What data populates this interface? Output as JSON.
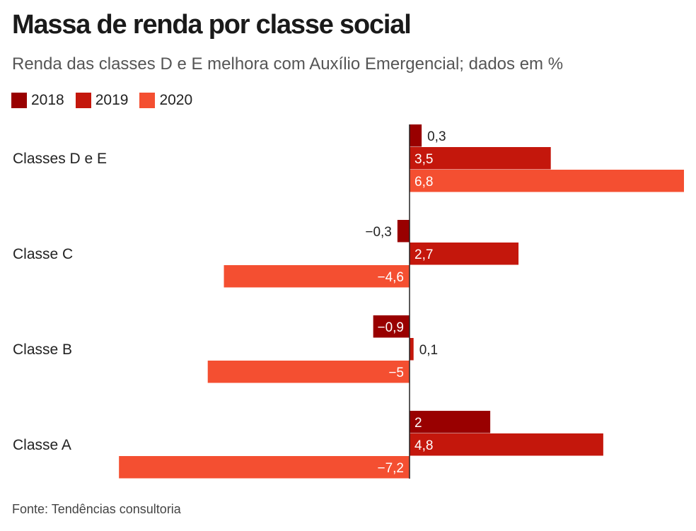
{
  "chart_data": {
    "type": "bar",
    "orientation": "horizontal",
    "title": "Massa de renda por classe social",
    "subtitle": "Renda das classes D e E melhora com Auxílio Emergencial; dados em %",
    "categories": [
      "Classes D e E",
      "Classe C",
      "Classe B",
      "Classe A"
    ],
    "series": [
      {
        "name": "2018",
        "color": "#990000",
        "values": [
          0.3,
          -0.3,
          -0.9,
          2
        ],
        "labels": [
          "0,3",
          "−0,3",
          "−0,9",
          "2"
        ]
      },
      {
        "name": "2019",
        "color": "#c4170c",
        "values": [
          3.5,
          2.7,
          0.1,
          4.8
        ],
        "labels": [
          "3,5",
          "2,7",
          "0,1",
          "4,8"
        ]
      },
      {
        "name": "2020",
        "color": "#f44f31",
        "values": [
          6.8,
          -4.6,
          -5,
          -7.2
        ],
        "labels": [
          "6,8",
          "−4,6",
          "−5",
          "−7,2"
        ]
      }
    ],
    "xlim": [
      -7.2,
      6.8
    ],
    "grid": false,
    "legend_position": "top-left",
    "source": "Fonte: Tendências consultoria"
  }
}
